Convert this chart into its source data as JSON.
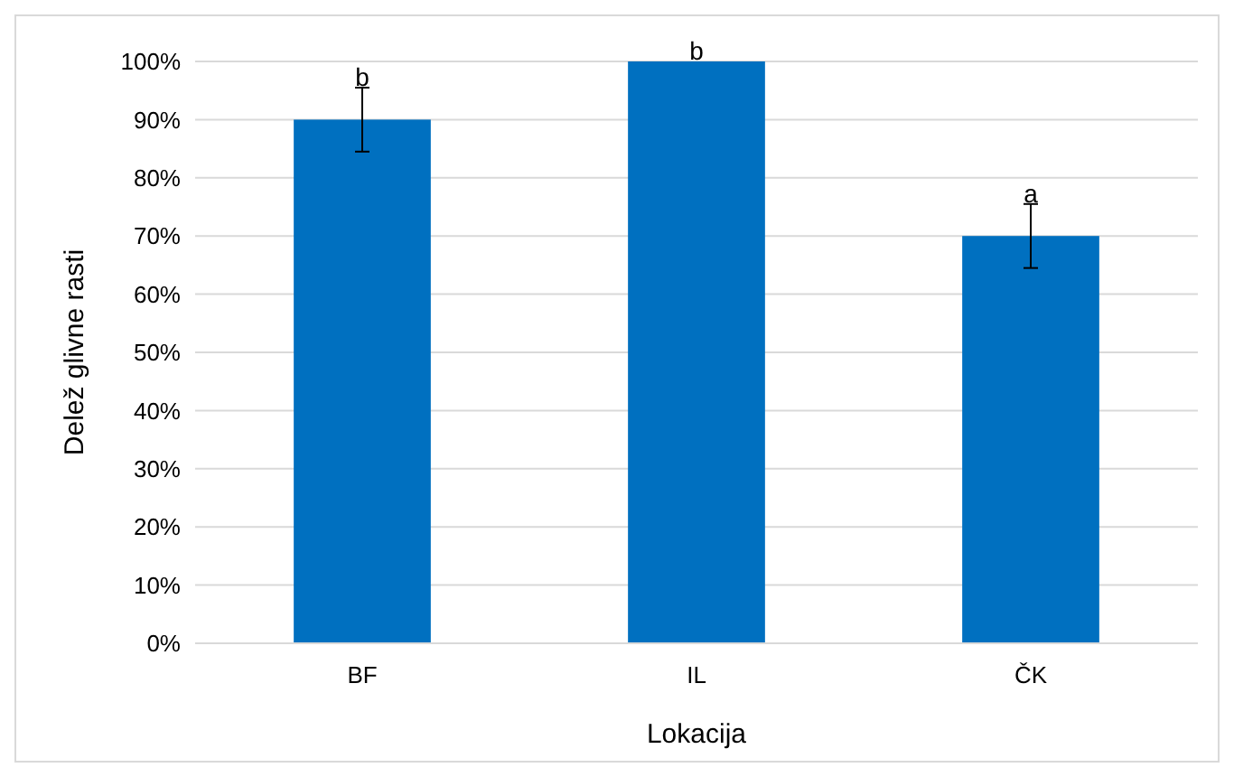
{
  "chart_data": {
    "type": "bar",
    "xlabel": "Lokacija",
    "ylabel": "Delež glivne rasti",
    "categories": [
      "BF",
      "IL",
      "ČK"
    ],
    "values": [
      90,
      100,
      70
    ],
    "errors": [
      5.5,
      null,
      5.5
    ],
    "color": "#0070c0",
    "ylim": [
      0,
      100
    ],
    "yticks": [
      {
        "value": 0,
        "label": "0%"
      },
      {
        "value": 10,
        "label": "10%"
      },
      {
        "value": 20,
        "label": "20%"
      },
      {
        "value": 30,
        "label": "30%"
      },
      {
        "value": 40,
        "label": "40%"
      },
      {
        "value": 50,
        "label": "50%"
      },
      {
        "value": 60,
        "label": "60%"
      },
      {
        "value": 70,
        "label": "70%"
      },
      {
        "value": 80,
        "label": "80%"
      },
      {
        "value": 90,
        "label": "90%"
      },
      {
        "value": 100,
        "label": "100%"
      }
    ],
    "grid": "y",
    "annotations": [
      {
        "text": "b",
        "x": "BF",
        "y": 95.5
      },
      {
        "text": "b",
        "x": "IL",
        "y": 100
      },
      {
        "text": "a",
        "x": "ČK",
        "y": 75.5
      }
    ]
  }
}
